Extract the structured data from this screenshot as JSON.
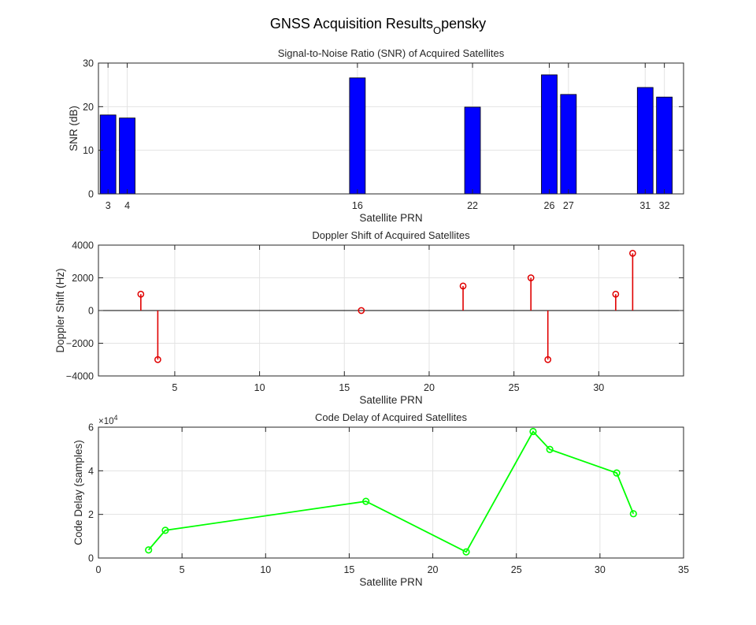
{
  "figure": {
    "title_main": "GNSS Acquisition Results",
    "title_sub": "O",
    "title_tail": "pensky"
  },
  "chart_data": [
    {
      "type": "bar",
      "title": "Signal-to-Noise Ratio (SNR) of Acquired Satellites",
      "xlabel": "Satellite PRN",
      "ylabel": "SNR (dB)",
      "categories": [
        "3",
        "4",
        "16",
        "22",
        "26",
        "27",
        "31",
        "32"
      ],
      "x": [
        3,
        4,
        16,
        22,
        26,
        27,
        31,
        32
      ],
      "values": [
        18.1,
        17.4,
        26.6,
        19.9,
        27.3,
        22.8,
        24.4,
        22.2
      ],
      "xlim": [
        2.5,
        33
      ],
      "ylim": [
        0,
        30
      ],
      "yticks": [
        0,
        10,
        20,
        30
      ],
      "color": "#0000ff",
      "grid": true
    },
    {
      "type": "stem",
      "title": "Doppler Shift of Acquired Satellites",
      "xlabel": "Satellite PRN",
      "ylabel": "Doppler Shift (Hz)",
      "x": [
        3,
        4,
        16,
        22,
        26,
        27,
        31,
        32
      ],
      "values": [
        1000,
        -3000,
        0,
        1500,
        2000,
        -3000,
        1000,
        3500
      ],
      "xlim": [
        0.5,
        35
      ],
      "ylim": [
        -4000,
        4000
      ],
      "xticks": [
        5,
        10,
        15,
        20,
        25,
        30
      ],
      "yticks": [
        -4000,
        -2000,
        0,
        2000,
        4000
      ],
      "color": "#e00000",
      "grid": true
    },
    {
      "type": "line",
      "title": "Code Delay of Acquired Satellites",
      "xlabel": "Satellite PRN",
      "ylabel": "Code Delay (samples)",
      "exponent_label": "×10",
      "exponent_power": "4",
      "x": [
        3,
        4,
        16,
        22,
        26,
        27,
        31,
        32
      ],
      "values": [
        0.37,
        1.27,
        2.6,
        0.28,
        5.8,
        4.98,
        3.9,
        2.03
      ],
      "xlim": [
        0,
        35
      ],
      "ylim": [
        0,
        6
      ],
      "xticks": [
        0,
        5,
        10,
        15,
        20,
        25,
        30,
        35
      ],
      "yticks": [
        0,
        2,
        4,
        6
      ],
      "color": "#00ff00",
      "marker": "circle",
      "grid": true
    }
  ]
}
